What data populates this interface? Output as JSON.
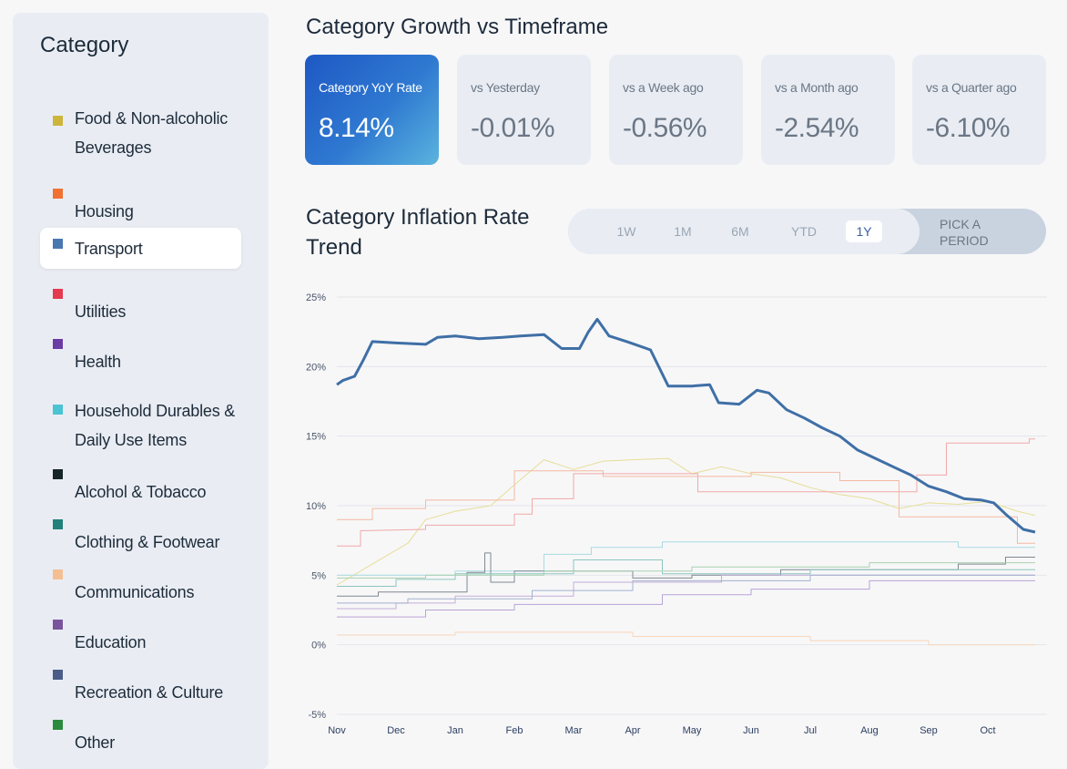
{
  "sidebar": {
    "title": "Category",
    "items": [
      {
        "label": "Food & Non-alcoholic Beverages",
        "color": "#cdb53c"
      },
      {
        "label": "Housing",
        "color": "#f07132"
      },
      {
        "label": "Transport",
        "color": "#4a78b0"
      },
      {
        "label": "Utilities",
        "color": "#e63a4f"
      },
      {
        "label": "Health",
        "color": "#6b3ba6"
      },
      {
        "label": "Household Durables & Daily Use Items",
        "color": "#4ac3d3"
      },
      {
        "label": "Alcohol & Tobacco",
        "color": "#162526"
      },
      {
        "label": "Clothing & Footwear",
        "color": "#21807a"
      },
      {
        "label": "Communications",
        "color": "#f4c093"
      },
      {
        "label": "Education",
        "color": "#7a559d"
      },
      {
        "label": "Recreation & Culture",
        "color": "#4a5c88"
      },
      {
        "label": "Other",
        "color": "#2b8a3d"
      }
    ],
    "active_index": 2
  },
  "growth": {
    "title": "Category Growth vs Timeframe",
    "cards": [
      {
        "label": "Category YoY Rate",
        "value": "8.14%"
      },
      {
        "label": "vs Yesterday",
        "value": "-0.01%"
      },
      {
        "label": "vs a Week ago",
        "value": "-0.56%"
      },
      {
        "label": "vs a Month ago",
        "value": "-2.54%"
      },
      {
        "label": "vs a Quarter ago",
        "value": "-6.10%"
      }
    ]
  },
  "trend": {
    "title": "Category Inflation Rate Trend",
    "periods": [
      "1W",
      "1M",
      "6M",
      "YTD",
      "1Y"
    ],
    "active_period": "1Y",
    "pick_period_label": "PICK A PERIOD"
  },
  "chart_data": {
    "type": "line",
    "x_labels": [
      "Nov",
      "Dec",
      "Jan",
      "Feb",
      "Mar",
      "Apr",
      "May",
      "Jun",
      "Jul",
      "Aug",
      "Sep",
      "Oct"
    ],
    "y_ticks": [
      "25%",
      "20%",
      "15%",
      "10%",
      "5%",
      "0%",
      "-5%"
    ],
    "ylim": [
      -5,
      25
    ],
    "grid": true,
    "highlight_series": "Transport",
    "series": [
      {
        "name": "Transport",
        "color": "#3f6fa6",
        "highlight": true,
        "points": [
          [
            0,
            18.7
          ],
          [
            0.1,
            19
          ],
          [
            0.3,
            19.3
          ],
          [
            0.45,
            20.5
          ],
          [
            0.6,
            21.8
          ],
          [
            1,
            21.7
          ],
          [
            1.5,
            21.6
          ],
          [
            1.7,
            22.1
          ],
          [
            2,
            22.2
          ],
          [
            2.4,
            22.0
          ],
          [
            2.8,
            22.1
          ],
          [
            3.1,
            22.2
          ],
          [
            3.5,
            22.3
          ],
          [
            3.65,
            21.8
          ],
          [
            3.8,
            21.3
          ],
          [
            4.1,
            21.3
          ],
          [
            4.25,
            22.5
          ],
          [
            4.4,
            23.4
          ],
          [
            4.6,
            22.2
          ],
          [
            4.9,
            21.8
          ],
          [
            5.3,
            21.2
          ],
          [
            5.6,
            18.6
          ],
          [
            6.0,
            18.6
          ],
          [
            6.3,
            18.7
          ],
          [
            6.45,
            17.4
          ],
          [
            6.8,
            17.3
          ],
          [
            7.1,
            18.3
          ],
          [
            7.3,
            18.1
          ],
          [
            7.6,
            16.9
          ],
          [
            7.9,
            16.3
          ],
          [
            8.2,
            15.6
          ],
          [
            8.5,
            15.0
          ],
          [
            8.8,
            14.0
          ],
          [
            9.1,
            13.4
          ],
          [
            9.4,
            12.8
          ],
          [
            9.7,
            12.2
          ],
          [
            10.0,
            11.4
          ],
          [
            10.3,
            11.0
          ],
          [
            10.6,
            10.5
          ],
          [
            10.9,
            10.4
          ],
          [
            11.1,
            10.2
          ],
          [
            11.3,
            9.4
          ],
          [
            11.6,
            8.3
          ],
          [
            11.8,
            8.1
          ]
        ]
      },
      {
        "name": "Food & Non-alcoholic Beverages",
        "color": "#e6de96",
        "points": [
          [
            0,
            4.3
          ],
          [
            0.6,
            5.8
          ],
          [
            1.2,
            7.3
          ],
          [
            1.5,
            9.0
          ],
          [
            2.0,
            9.6
          ],
          [
            2.6,
            10.0
          ],
          [
            3.0,
            11.5
          ],
          [
            3.5,
            13.3
          ],
          [
            4.0,
            12.6
          ],
          [
            4.5,
            13.2
          ],
          [
            5.0,
            13.3
          ],
          [
            5.6,
            13.4
          ],
          [
            6.0,
            12.3
          ],
          [
            6.5,
            12.8
          ],
          [
            7.0,
            12.3
          ],
          [
            7.5,
            12.0
          ],
          [
            8.0,
            11.3
          ],
          [
            8.5,
            10.8
          ],
          [
            9.0,
            10.5
          ],
          [
            9.5,
            9.8
          ],
          [
            10.0,
            10.2
          ],
          [
            10.5,
            10.1
          ],
          [
            11.0,
            10.3
          ],
          [
            11.5,
            9.6
          ],
          [
            11.8,
            9.3
          ]
        ]
      },
      {
        "name": "Utilities",
        "color": "#f2a8a8",
        "points": [
          [
            0,
            7.1
          ],
          [
            0.4,
            7.1
          ],
          [
            0.4,
            8.2
          ],
          [
            1.5,
            8.3
          ],
          [
            1.5,
            8.6
          ],
          [
            3,
            8.6
          ],
          [
            3,
            9.4
          ],
          [
            3.3,
            9.4
          ],
          [
            3.3,
            10.5
          ],
          [
            4,
            10.5
          ],
          [
            4,
            12.3
          ],
          [
            6.1,
            12.3
          ],
          [
            6.1,
            11.0
          ],
          [
            9.8,
            11.0
          ],
          [
            9.8,
            12.2
          ],
          [
            10.3,
            12.2
          ],
          [
            10.3,
            14.5
          ],
          [
            11.7,
            14.5
          ],
          [
            11.7,
            14.8
          ],
          [
            11.8,
            14.8
          ]
        ]
      },
      {
        "name": "Housing",
        "color": "#f5b8a0",
        "points": [
          [
            0,
            9.0
          ],
          [
            0.6,
            9.0
          ],
          [
            0.6,
            9.8
          ],
          [
            1.5,
            9.8
          ],
          [
            1.5,
            10.4
          ],
          [
            3.0,
            10.4
          ],
          [
            3.0,
            12.5
          ],
          [
            4.5,
            12.5
          ],
          [
            4.5,
            12.1
          ],
          [
            7.0,
            12.1
          ],
          [
            7.0,
            12.4
          ],
          [
            8.5,
            12.4
          ],
          [
            8.5,
            11.8
          ],
          [
            9.5,
            11.8
          ],
          [
            9.5,
            9.2
          ],
          [
            11.5,
            9.2
          ],
          [
            11.5,
            7.3
          ],
          [
            11.8,
            7.3
          ]
        ]
      },
      {
        "name": "Household Durables & Daily Use Items",
        "color": "#a8dbe0",
        "points": [
          [
            0,
            5.0
          ],
          [
            2.0,
            5.0
          ],
          [
            2.0,
            5.3
          ],
          [
            3.5,
            5.3
          ],
          [
            3.5,
            6.5
          ],
          [
            4.3,
            6.5
          ],
          [
            4.3,
            7.0
          ],
          [
            5.5,
            7.0
          ],
          [
            5.5,
            7.4
          ],
          [
            10.5,
            7.4
          ],
          [
            10.5,
            7.0
          ],
          [
            11.8,
            7.0
          ]
        ]
      },
      {
        "name": "Alcohol & Tobacco",
        "color": "#7f8890",
        "points": [
          [
            0,
            3.5
          ],
          [
            0.7,
            3.5
          ],
          [
            0.7,
            3.8
          ],
          [
            2.2,
            3.8
          ],
          [
            2.2,
            5.2
          ],
          [
            2.5,
            5.2
          ],
          [
            2.5,
            6.6
          ],
          [
            2.6,
            6.6
          ],
          [
            2.6,
            4.5
          ],
          [
            3.0,
            4.5
          ],
          [
            3.0,
            5.3
          ],
          [
            5.0,
            5.3
          ],
          [
            5.0,
            4.8
          ],
          [
            6.0,
            4.8
          ],
          [
            6.0,
            5.0
          ],
          [
            7.5,
            5.0
          ],
          [
            7.5,
            5.4
          ],
          [
            10.5,
            5.4
          ],
          [
            10.5,
            5.8
          ],
          [
            11.3,
            5.8
          ],
          [
            11.3,
            6.3
          ],
          [
            11.8,
            6.3
          ]
        ]
      },
      {
        "name": "Clothing & Footwear",
        "color": "#8ec6bf",
        "points": [
          [
            0,
            4.2
          ],
          [
            1.0,
            4.2
          ],
          [
            1.0,
            4.7
          ],
          [
            2.0,
            4.7
          ],
          [
            2.0,
            5.1
          ],
          [
            4.0,
            5.1
          ],
          [
            4.0,
            6.1
          ],
          [
            5.5,
            6.1
          ],
          [
            5.5,
            5.1
          ],
          [
            8.0,
            5.1
          ],
          [
            8.0,
            5.4
          ],
          [
            11.8,
            5.4
          ]
        ]
      },
      {
        "name": "Health",
        "color": "#b9a3d6",
        "points": [
          [
            0,
            2.0
          ],
          [
            1.5,
            2.0
          ],
          [
            1.5,
            2.5
          ],
          [
            3.0,
            2.5
          ],
          [
            3.0,
            2.9
          ],
          [
            5.5,
            2.9
          ],
          [
            5.5,
            3.6
          ],
          [
            7.0,
            3.6
          ],
          [
            7.0,
            4.0
          ],
          [
            9.0,
            4.0
          ],
          [
            9.0,
            4.6
          ],
          [
            11.8,
            4.6
          ]
        ]
      },
      {
        "name": "Education",
        "color": "#c3aed8",
        "points": [
          [
            0,
            2.6
          ],
          [
            1.0,
            2.6
          ],
          [
            1.0,
            3.0
          ],
          [
            2.0,
            3.0
          ],
          [
            2.0,
            3.5
          ],
          [
            4.0,
            3.5
          ],
          [
            4.0,
            4.5
          ],
          [
            6.5,
            4.5
          ],
          [
            6.5,
            5.0
          ],
          [
            11.8,
            5.0
          ]
        ]
      },
      {
        "name": "Recreation & Culture",
        "color": "#a3b0cf",
        "points": [
          [
            0,
            3.0
          ],
          [
            1.2,
            3.0
          ],
          [
            1.2,
            3.3
          ],
          [
            3.3,
            3.3
          ],
          [
            3.3,
            3.9
          ],
          [
            5.0,
            3.9
          ],
          [
            5.0,
            4.6
          ],
          [
            8.0,
            4.6
          ],
          [
            8.0,
            5.0
          ],
          [
            11.8,
            5.0
          ]
        ]
      },
      {
        "name": "Other",
        "color": "#a8d1b0",
        "points": [
          [
            0,
            4.8
          ],
          [
            1.5,
            4.8
          ],
          [
            1.5,
            5.0
          ],
          [
            3.5,
            5.0
          ],
          [
            3.5,
            5.3
          ],
          [
            6.0,
            5.3
          ],
          [
            6.0,
            5.6
          ],
          [
            9.0,
            5.6
          ],
          [
            9.0,
            5.9
          ],
          [
            11.8,
            5.9
          ]
        ]
      },
      {
        "name": "Communications",
        "color": "#f8d6b8",
        "points": [
          [
            0,
            0.7
          ],
          [
            2.0,
            0.7
          ],
          [
            2.0,
            0.9
          ],
          [
            5.0,
            0.9
          ],
          [
            5.0,
            0.6
          ],
          [
            8.0,
            0.6
          ],
          [
            8.0,
            0.3
          ],
          [
            10.0,
            0.3
          ],
          [
            10.0,
            0.0
          ],
          [
            11.8,
            0.0
          ]
        ]
      }
    ]
  }
}
